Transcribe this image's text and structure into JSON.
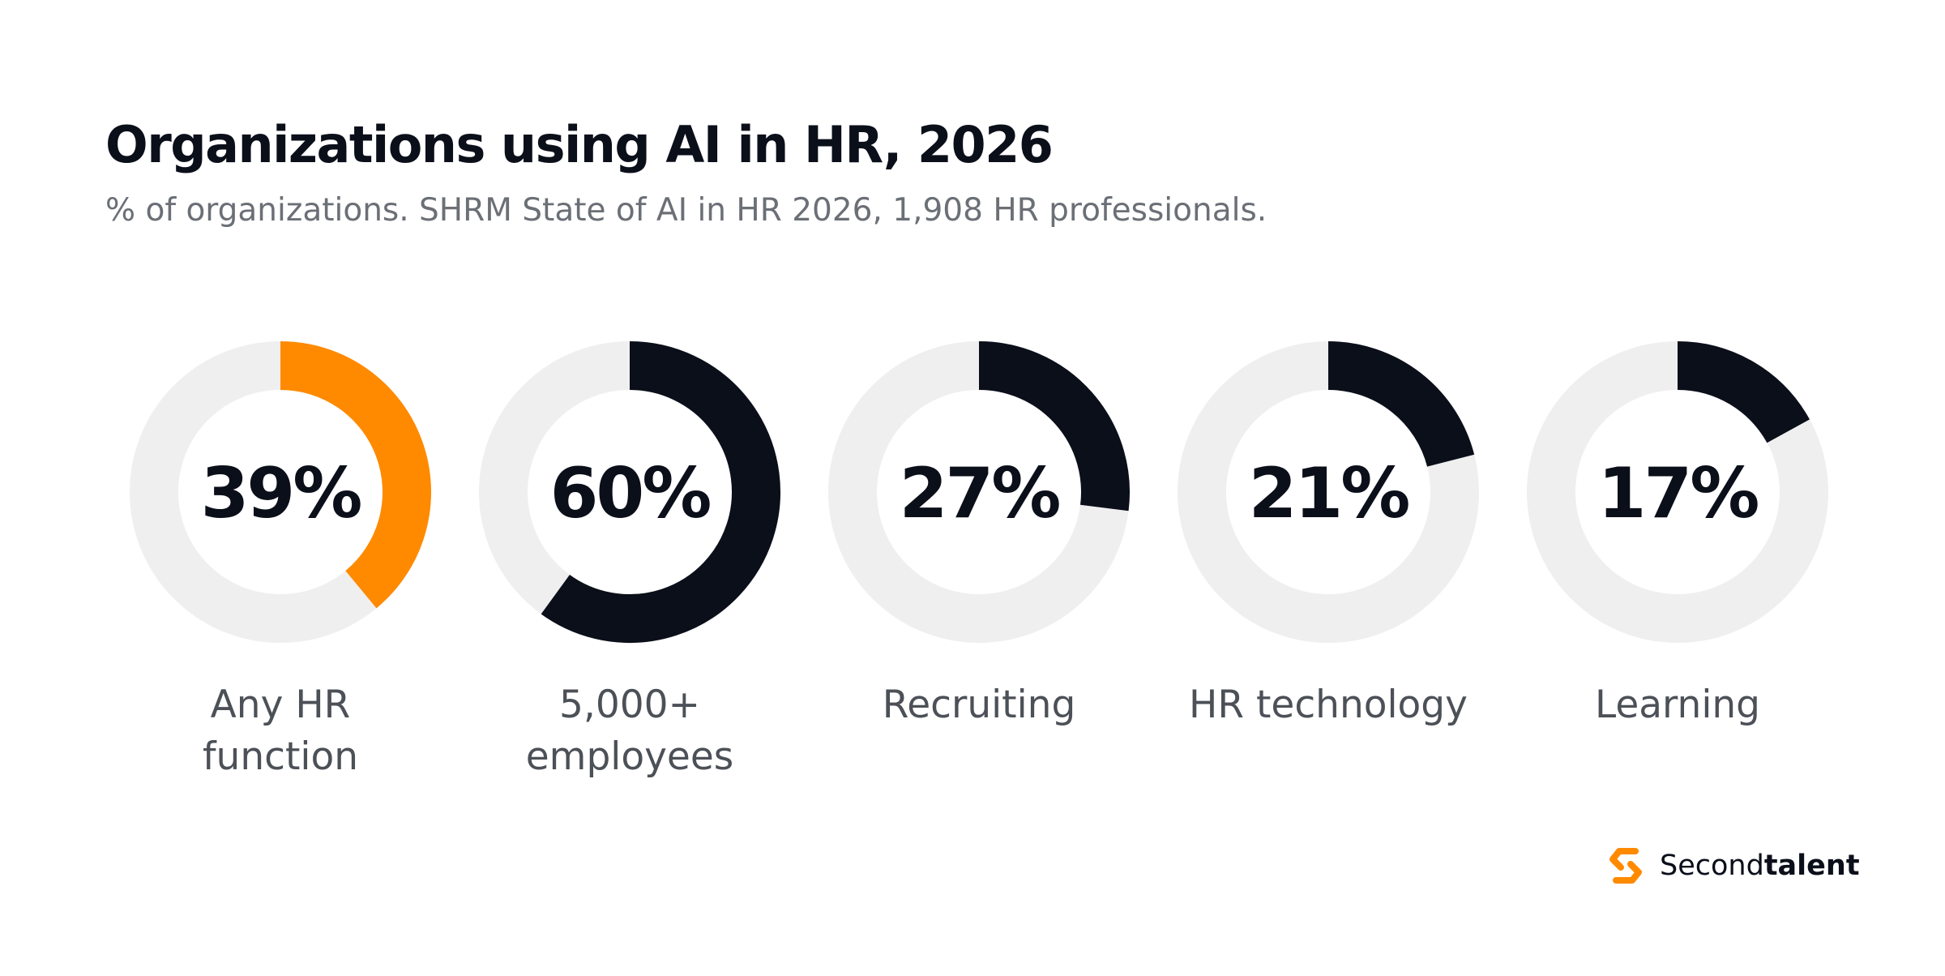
{
  "title": "Organizations using AI in HR, 2026",
  "subtitle": "% of organizations. SHRM State of AI in HR 2026, 1,908 HR professionals.",
  "colors": {
    "highlight": "#ff8a00",
    "dark": "#0b0f1a",
    "track": "#efefef",
    "label": "#4c5057",
    "subtitle": "#6b6f76"
  },
  "chart_data": {
    "type": "donut",
    "unit": "%",
    "items": [
      {
        "label_lines": [
          "Any HR",
          "function"
        ],
        "value": 39,
        "value_label": "39%",
        "highlight": true
      },
      {
        "label_lines": [
          "5,000+",
          "employees"
        ],
        "value": 60,
        "value_label": "60%",
        "highlight": false
      },
      {
        "label_lines": [
          "Recruiting"
        ],
        "value": 27,
        "value_label": "27%",
        "highlight": false
      },
      {
        "label_lines": [
          "HR technology"
        ],
        "value": 21,
        "value_label": "21%",
        "highlight": false
      },
      {
        "label_lines": [
          "Learning"
        ],
        "value": 17,
        "value_label": "17%",
        "highlight": false
      }
    ]
  },
  "logo": {
    "icon": "secondtalent-s-icon",
    "text_regular": "Second",
    "text_bold": "talent"
  }
}
